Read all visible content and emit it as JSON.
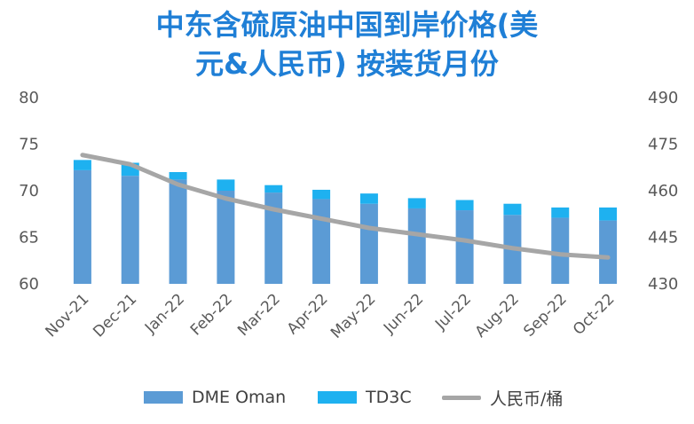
{
  "title_line1": "中东含硫原油中国到岸价格(美",
  "title_line2": "元&人民币) 按装货月份",
  "chart_data": {
    "type": "bar",
    "categories": [
      "Nov-21",
      "Dec-21",
      "Jan-22",
      "Feb-22",
      "Mar-22",
      "Apr-22",
      "May-22",
      "Jun-22",
      "Jul-22",
      "Aug-22",
      "Sep-22",
      "Oct-22"
    ],
    "series": [
      {
        "name": "DME Oman",
        "axis": "left",
        "type": "bar",
        "stack": "usd",
        "color": "#5b9bd5",
        "values": [
          72.2,
          71.6,
          71.2,
          70.0,
          69.8,
          69.1,
          68.6,
          68.1,
          67.9,
          67.4,
          67.1,
          66.8
        ]
      },
      {
        "name": "TD3C",
        "axis": "left",
        "type": "bar",
        "stack": "usd",
        "color": "#1eb1f0",
        "values": [
          1.1,
          1.4,
          0.8,
          1.2,
          0.8,
          1.0,
          1.1,
          1.1,
          1.1,
          1.2,
          1.1,
          1.4
        ]
      },
      {
        "name": "人民币/桶",
        "axis": "right",
        "type": "line",
        "color": "#a6a6a6",
        "values": [
          471.5,
          468.5,
          462.0,
          457.5,
          454.0,
          451.0,
          448.0,
          446.0,
          444.0,
          441.5,
          439.5,
          438.5
        ]
      }
    ],
    "left_axis": {
      "ylim": [
        60,
        80
      ],
      "ticks": [
        "80",
        "75",
        "70",
        "65",
        "60"
      ]
    },
    "right_axis": {
      "ylim": [
        430,
        490
      ],
      "ticks": [
        "490",
        "475",
        "460",
        "445",
        "430"
      ]
    },
    "grid": false,
    "legend_position": "bottom"
  },
  "colors": {
    "title": "#1f7fd6",
    "dme": "#5b9bd5",
    "td3c": "#1eb1f0",
    "line": "#a6a6a6"
  }
}
